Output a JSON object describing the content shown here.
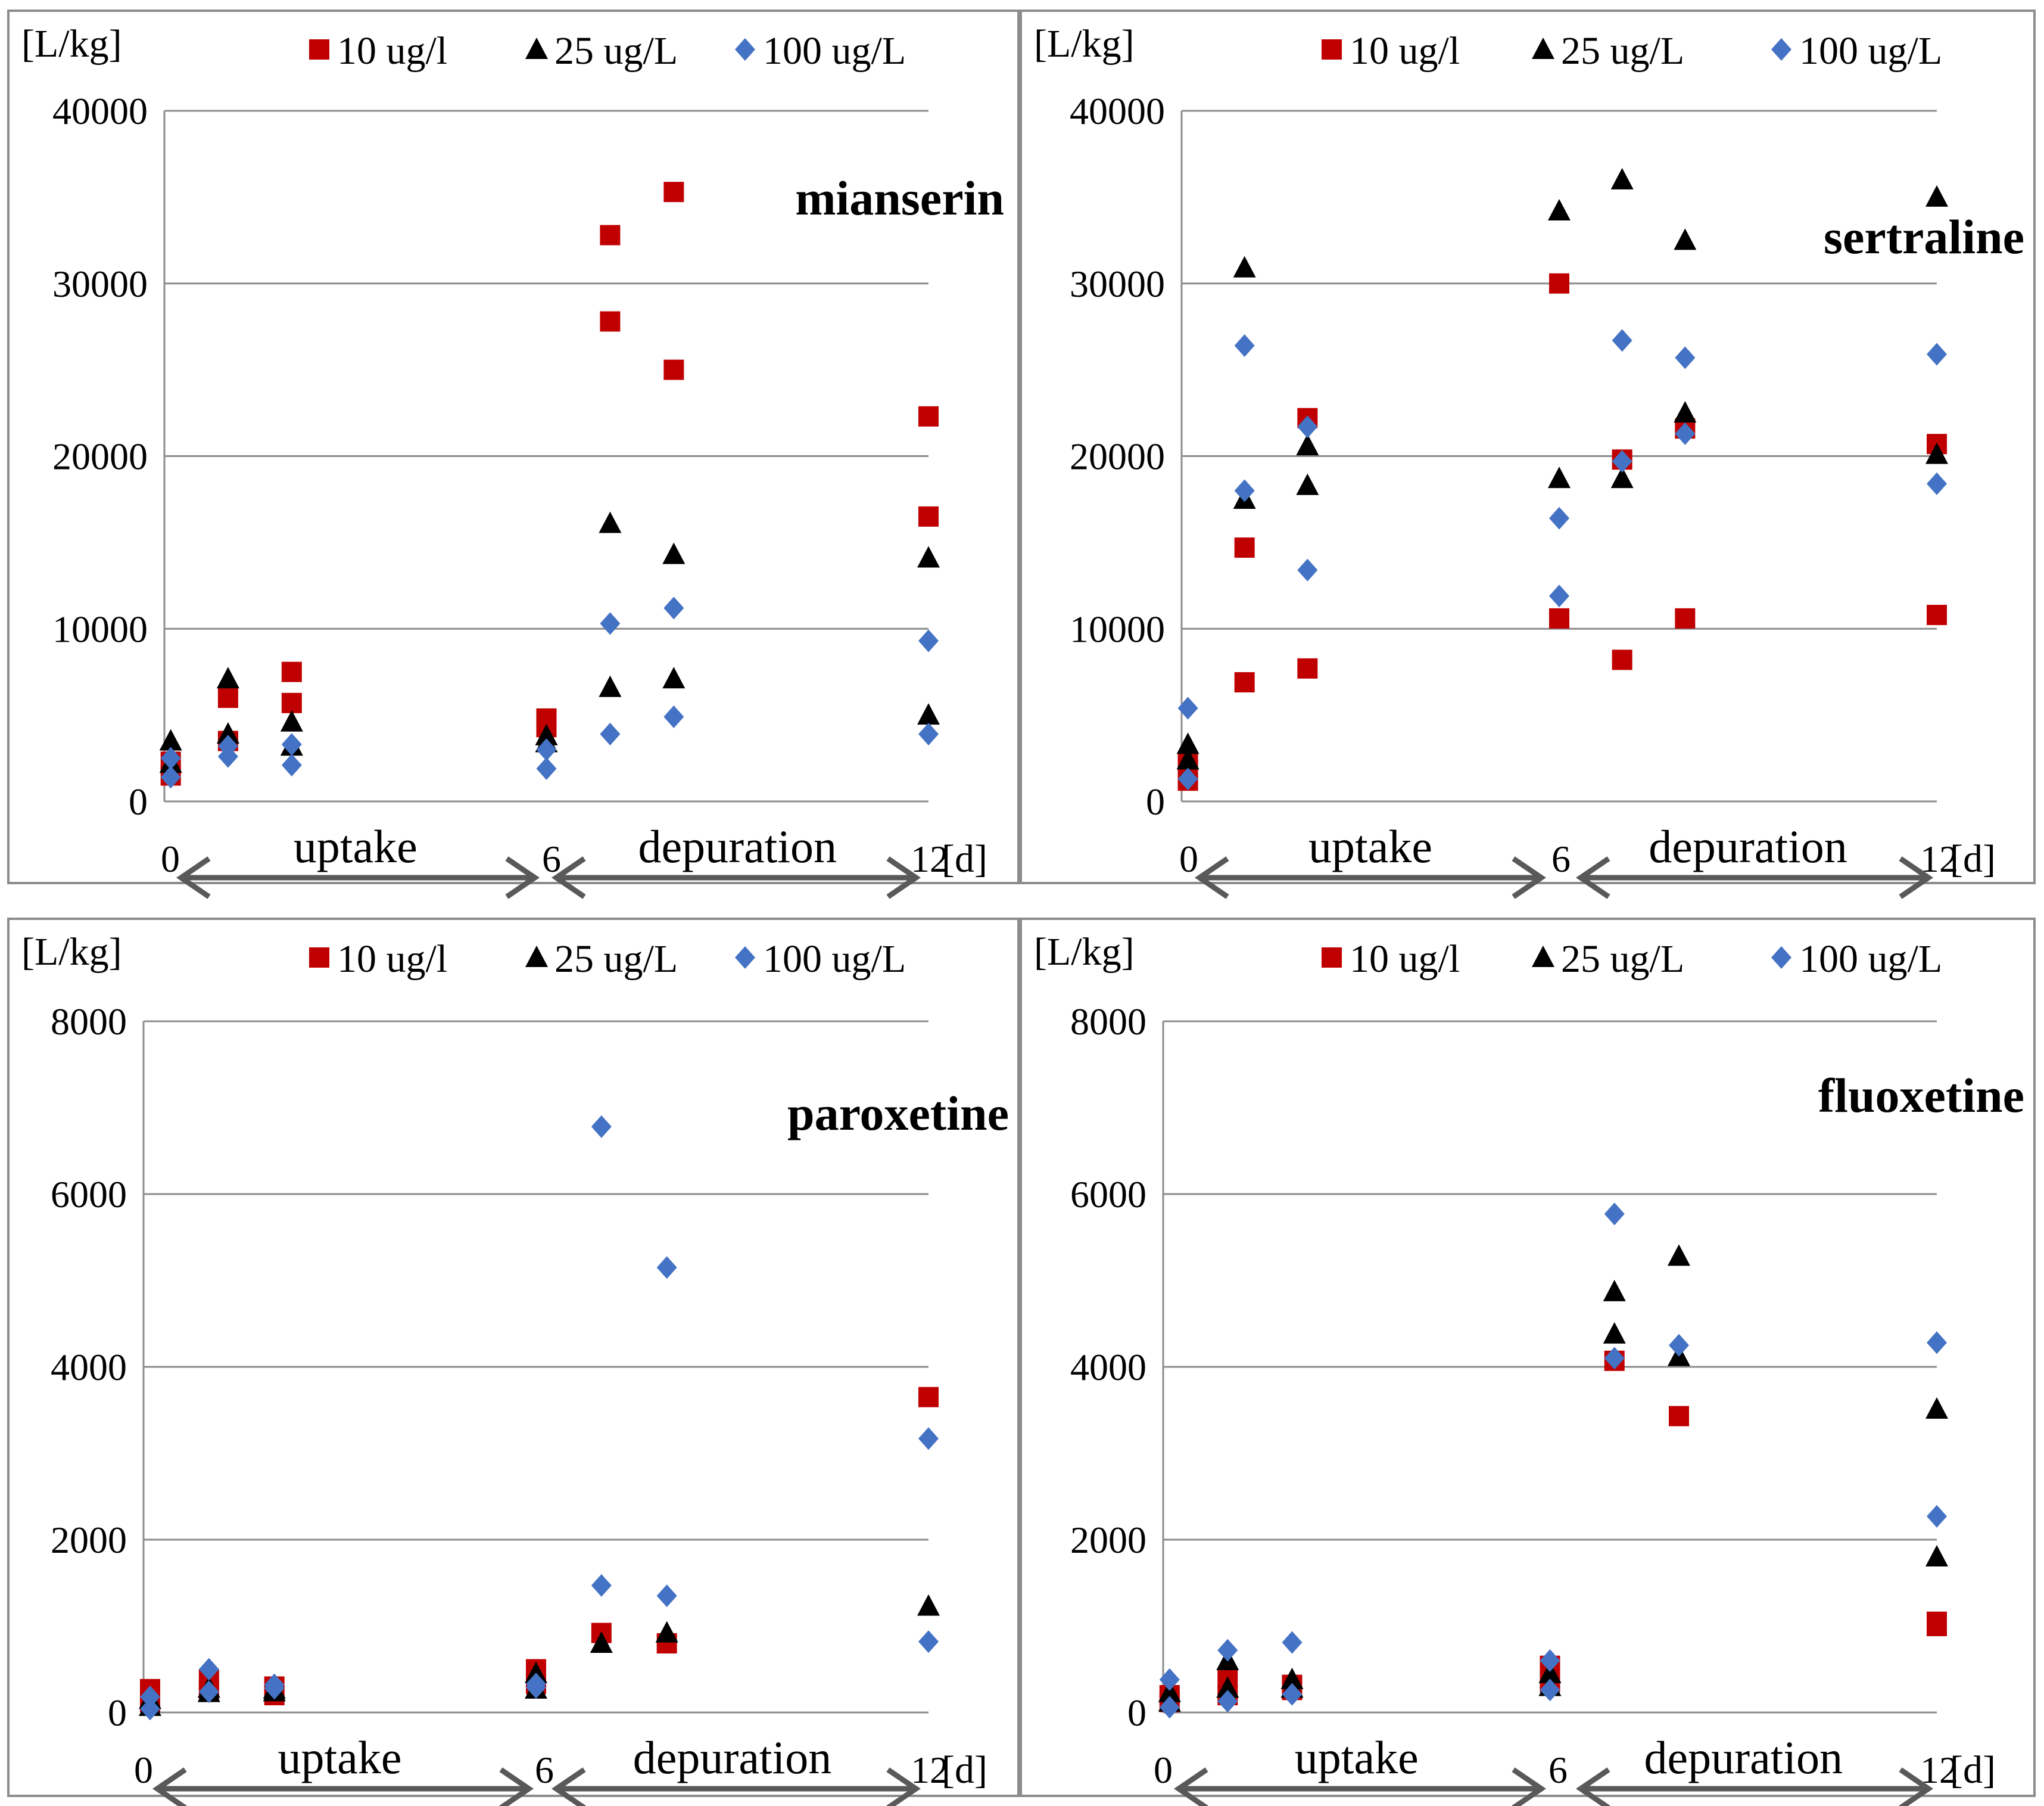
{
  "figure": {
    "y_unit": "[L/kg]",
    "x_unit": "[d]",
    "legend": [
      {
        "label": "10 ug/l",
        "marker": "square",
        "color": "#c00000"
      },
      {
        "label": "25 ug/L",
        "marker": "triangle",
        "color": "#000000"
      },
      {
        "label": "100 ug/L",
        "marker": "diamond",
        "color": "#4472c4"
      }
    ],
    "phases": {
      "uptake": "uptake",
      "depuration": "depuration"
    },
    "arrow_color": "#595959"
  },
  "chart_data": [
    {
      "type": "scatter",
      "title": "mianserin",
      "ylabel": "[L/kg]",
      "xlabel": "[d]",
      "xlim": [
        0,
        12
      ],
      "ylim": [
        0,
        40000
      ],
      "yticks": [
        "0",
        "10000",
        "20000",
        "30000",
        "40000"
      ],
      "xticks": [
        "0",
        "6",
        "12"
      ],
      "xtick_values": [
        0,
        6,
        12
      ],
      "series": [
        {
          "name": "10 ug/l",
          "points": [
            [
              0.1,
              2300
            ],
            [
              0.1,
              1500
            ],
            [
              1,
              6000
            ],
            [
              1,
              3500
            ],
            [
              2,
              7500
            ],
            [
              2,
              5700
            ],
            [
              6,
              4800
            ],
            [
              6,
              4300
            ],
            [
              7,
              32800
            ],
            [
              7,
              27800
            ],
            [
              8,
              35300
            ],
            [
              8,
              25000
            ],
            [
              12,
              22300
            ],
            [
              12,
              16500
            ]
          ]
        },
        {
          "name": "25 ug/L",
          "points": [
            [
              0.1,
              3500
            ],
            [
              0.1,
              2200
            ],
            [
              1,
              7100
            ],
            [
              1,
              3900
            ],
            [
              2,
              4600
            ],
            [
              2,
              3200
            ],
            [
              6,
              3800
            ],
            [
              6,
              3400
            ],
            [
              7,
              16100
            ],
            [
              7,
              6600
            ],
            [
              8,
              14300
            ],
            [
              8,
              7100
            ],
            [
              12,
              14100
            ],
            [
              12,
              5000
            ]
          ]
        },
        {
          "name": "100 ug/L",
          "points": [
            [
              0.1,
              2500
            ],
            [
              0.1,
              1400
            ],
            [
              1,
              3200
            ],
            [
              1,
              2600
            ],
            [
              2,
              3300
            ],
            [
              2,
              2100
            ],
            [
              6,
              3000
            ],
            [
              6,
              1900
            ],
            [
              7,
              10300
            ],
            [
              7,
              3900
            ],
            [
              8,
              11200
            ],
            [
              8,
              4900
            ],
            [
              12,
              9300
            ],
            [
              12,
              3900
            ]
          ]
        }
      ]
    },
    {
      "type": "scatter",
      "title": "sertraline",
      "ylabel": "[L/kg]",
      "xlabel": "[d]",
      "xlim": [
        0,
        12
      ],
      "ylim": [
        0,
        40000
      ],
      "yticks": [
        "0",
        "10000",
        "20000",
        "30000",
        "40000"
      ],
      "xticks": [
        "0",
        "6",
        "12"
      ],
      "xtick_values": [
        0,
        6,
        12
      ],
      "series": [
        {
          "name": "10 ug/l",
          "points": [
            [
              0.1,
              2300
            ],
            [
              0.1,
              1200
            ],
            [
              1,
              14700
            ],
            [
              1,
              6900
            ],
            [
              2,
              22200
            ],
            [
              2,
              7700
            ],
            [
              6,
              30000
            ],
            [
              6,
              10600
            ],
            [
              7,
              19800
            ],
            [
              7,
              8200
            ],
            [
              8,
              21600
            ],
            [
              8,
              10600
            ],
            [
              12,
              20700
            ],
            [
              12,
              10800
            ]
          ]
        },
        {
          "name": "25 ug/L",
          "points": [
            [
              0.1,
              3300
            ],
            [
              0.1,
              2400
            ],
            [
              1,
              30900
            ],
            [
              1,
              17500
            ],
            [
              2,
              20600
            ],
            [
              2,
              18300
            ],
            [
              6,
              34200
            ],
            [
              6,
              18700
            ],
            [
              7,
              36000
            ],
            [
              7,
              18700
            ],
            [
              8,
              32500
            ],
            [
              8,
              22500
            ],
            [
              12,
              35000
            ],
            [
              12,
              20100
            ]
          ]
        },
        {
          "name": "100 ug/L",
          "points": [
            [
              0.1,
              5400
            ],
            [
              0.1,
              1300
            ],
            [
              1,
              26400
            ],
            [
              1,
              18000
            ],
            [
              2,
              21700
            ],
            [
              2,
              13400
            ],
            [
              6,
              16400
            ],
            [
              6,
              11900
            ],
            [
              7,
              26700
            ],
            [
              7,
              19700
            ],
            [
              8,
              25700
            ],
            [
              8,
              21300
            ],
            [
              12,
              25900
            ],
            [
              12,
              18400
            ]
          ]
        }
      ]
    },
    {
      "type": "scatter",
      "title": "paroxetine",
      "ylabel": "[L/kg]",
      "xlabel": "[d]",
      "xlim": [
        0,
        12
      ],
      "ylim": [
        0,
        8000
      ],
      "yticks": [
        "0",
        "2000",
        "4000",
        "6000",
        "8000"
      ],
      "xticks": [
        "0",
        "6",
        "12"
      ],
      "xtick_values": [
        0,
        6,
        12
      ],
      "series": [
        {
          "name": "10 ug/l",
          "points": [
            [
              0.1,
              270
            ],
            [
              0.1,
              120
            ],
            [
              1,
              380
            ],
            [
              1,
              260
            ],
            [
              2,
              300
            ],
            [
              2,
              200
            ],
            [
              6,
              500
            ],
            [
              6,
              330
            ],
            [
              7,
              920
            ],
            [
              8,
              800
            ],
            [
              12,
              3650
            ]
          ]
        },
        {
          "name": "25 ug/L",
          "points": [
            [
              0.1,
              150
            ],
            [
              0.1,
              70
            ],
            [
              1,
              280
            ],
            [
              1,
              230
            ],
            [
              2,
              270
            ],
            [
              2,
              240
            ],
            [
              6,
              450
            ],
            [
              6,
              270
            ],
            [
              7,
              800
            ],
            [
              8,
              920
            ],
            [
              12,
              1230
            ]
          ]
        },
        {
          "name": "100 ug/L",
          "points": [
            [
              0.1,
              180
            ],
            [
              0.1,
              40
            ],
            [
              1,
              500
            ],
            [
              1,
              240
            ],
            [
              2,
              320
            ],
            [
              2,
              280
            ],
            [
              6,
              330
            ],
            [
              6,
              290
            ],
            [
              7,
              6780
            ],
            [
              7,
              1470
            ],
            [
              8,
              5150
            ],
            [
              8,
              1350
            ],
            [
              12,
              3170
            ],
            [
              12,
              820
            ]
          ]
        }
      ]
    },
    {
      "type": "scatter",
      "title": "fluoxetine",
      "ylabel": "[L/kg]",
      "xlabel": "[d]",
      "xlim": [
        0,
        12
      ],
      "ylim": [
        0,
        8000
      ],
      "yticks": [
        "0",
        "2000",
        "4000",
        "6000",
        "8000"
      ],
      "xticks": [
        "0",
        "6",
        "12"
      ],
      "xtick_values": [
        0,
        6,
        12
      ],
      "series": [
        {
          "name": "10 ug/l",
          "points": [
            [
              0.1,
              200
            ],
            [
              0.1,
              120
            ],
            [
              1,
              400
            ],
            [
              1,
              200
            ],
            [
              2,
              320
            ],
            [
              2,
              260
            ],
            [
              6,
              540
            ],
            [
              6,
              350
            ],
            [
              7,
              4070
            ],
            [
              8,
              3430
            ],
            [
              12,
              1050
            ],
            [
              12,
              1000
            ]
          ]
        },
        {
          "name": "25 ug/L",
          "points": [
            [
              0.1,
              230
            ],
            [
              0.1,
              120
            ],
            [
              1,
              600
            ],
            [
              1,
              280
            ],
            [
              2,
              380
            ],
            [
              2,
              280
            ],
            [
              6,
              450
            ],
            [
              6,
              300
            ],
            [
              7,
              4870
            ],
            [
              7,
              4380
            ],
            [
              8,
              5280
            ],
            [
              8,
              4120
            ],
            [
              12,
              3510
            ],
            [
              12,
              1800
            ]
          ]
        },
        {
          "name": "100 ug/L",
          "points": [
            [
              0.1,
              380
            ],
            [
              0.1,
              60
            ],
            [
              1,
              720
            ],
            [
              1,
              130
            ],
            [
              2,
              810
            ],
            [
              2,
              210
            ],
            [
              6,
              600
            ],
            [
              6,
              260
            ],
            [
              7,
              5770
            ],
            [
              7,
              4100
            ],
            [
              8,
              4250
            ],
            [
              12,
              4280
            ],
            [
              12,
              2270
            ]
          ]
        }
      ]
    }
  ]
}
